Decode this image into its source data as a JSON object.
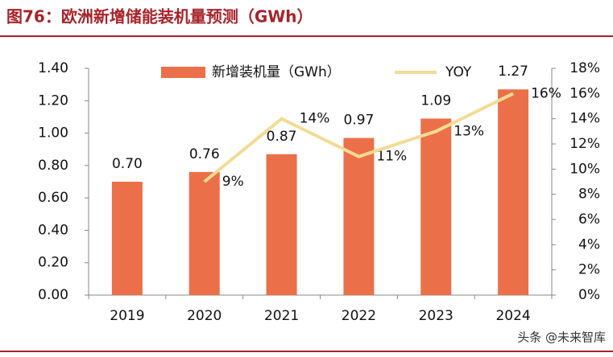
{
  "chart_data": {
    "type": "bar-line",
    "title": "图76：欧洲新增储能装机量预测（GWh）",
    "categories": [
      "2019",
      "2020",
      "2021",
      "2022",
      "2023",
      "2024"
    ],
    "series": [
      {
        "name": "新增装机量（GWh）",
        "color": "#eb7049",
        "type": "bar",
        "values": [
          0.7,
          0.76,
          0.87,
          0.97,
          1.09,
          1.27
        ],
        "value_labels": [
          "0.70",
          "0.76",
          "0.87",
          "0.97",
          "1.09",
          "1.27"
        ]
      },
      {
        "name": "YOY",
        "color": "#f2dc94",
        "type": "line",
        "axis": "y2",
        "values": [
          null,
          9,
          14,
          11,
          13,
          16
        ],
        "value_labels": [
          null,
          "9%",
          "14%",
          "11%",
          "13%",
          "16%"
        ]
      }
    ],
    "ylim": [
      0,
      1.4
    ],
    "yticks": [
      {
        "value": 0,
        "label": "0.00"
      },
      {
        "value": 0.2,
        "label": "0.20"
      },
      {
        "value": 0.4,
        "label": "0.40"
      },
      {
        "value": 0.6,
        "label": "0.60"
      },
      {
        "value": 0.8,
        "label": "0.80"
      },
      {
        "value": 1.0,
        "label": "1.00"
      },
      {
        "value": 1.2,
        "label": "1.20"
      },
      {
        "value": 1.4,
        "label": "1.40"
      }
    ],
    "y2lim": [
      0,
      18
    ],
    "y2ticks": [
      {
        "value": 0,
        "label": "0%"
      },
      {
        "value": 2,
        "label": "2%"
      },
      {
        "value": 4,
        "label": "4%"
      },
      {
        "value": 6,
        "label": "6%"
      },
      {
        "value": 8,
        "label": "8%"
      },
      {
        "value": 10,
        "label": "10%"
      },
      {
        "value": 12,
        "label": "12%"
      },
      {
        "value": 14,
        "label": "14%"
      },
      {
        "value": 16,
        "label": "16%"
      },
      {
        "value": 18,
        "label": "18%"
      }
    ],
    "legend": "top",
    "watermark": "头条 @未来智库"
  }
}
